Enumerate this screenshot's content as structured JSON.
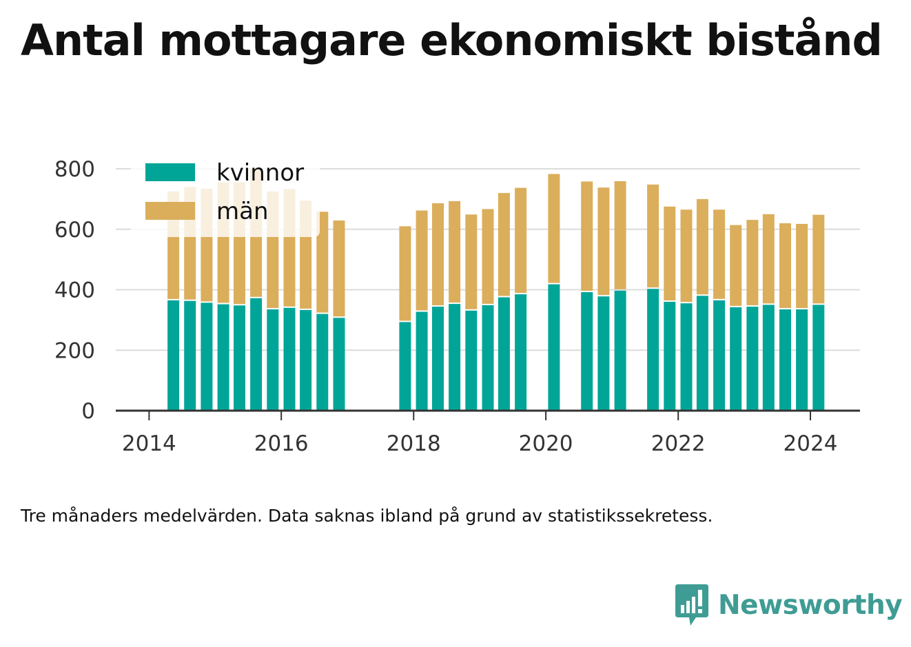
{
  "title": "Antal mottagare ekonomiskt bistånd",
  "caption": "Tre månaders medelvärden. Data saknas ibland på grund av statistikssekretess.",
  "brand": "Newsworthy",
  "colors": {
    "kvinnor": "#00a598",
    "man": "#dbae5c",
    "brand": "#3f9c94"
  },
  "chart_data": {
    "type": "bar",
    "stacked": true,
    "title": "Antal mottagare ekonomiskt bistånd",
    "xlabel": "",
    "ylabel": "",
    "ylim": [
      0,
      800
    ],
    "yticks": [
      0,
      200,
      400,
      600,
      800
    ],
    "xlim": [
      "2013-07-01",
      "2024-10-01"
    ],
    "xticks": [
      "2014",
      "2016",
      "2018",
      "2020",
      "2022",
      "2024"
    ],
    "grid": true,
    "legend": "top-left",
    "x": [
      "2014-05",
      "2014-08",
      "2014-11",
      "2015-02",
      "2015-05",
      "2015-08",
      "2015-11",
      "2016-02",
      "2016-05",
      "2016-08",
      "2016-11",
      "2017-11",
      "2018-02",
      "2018-05",
      "2018-08",
      "2018-11",
      "2019-02",
      "2019-05",
      "2019-08",
      "2020-02",
      "2020-08",
      "2020-11",
      "2021-02",
      "2021-08",
      "2021-11",
      "2022-02",
      "2022-05",
      "2022-08",
      "2022-11",
      "2023-02",
      "2023-05",
      "2023-08",
      "2023-11",
      "2024-02"
    ],
    "series": [
      {
        "name": "kvinnor",
        "values": [
          365,
          363,
          357,
          352,
          348,
          372,
          335,
          340,
          333,
          320,
          307,
          293,
          327,
          344,
          353,
          331,
          349,
          375,
          385,
          418,
          392,
          378,
          397,
          403,
          360,
          355,
          380,
          365,
          342,
          344,
          350,
          335,
          335,
          350
        ]
      },
      {
        "name": "män",
        "values": [
          360,
          377,
          377,
          403,
          407,
          428,
          390,
          393,
          362,
          338,
          322,
          317,
          335,
          342,
          340,
          318,
          318,
          345,
          352,
          365,
          366,
          360,
          362,
          345,
          315,
          310,
          320,
          300,
          272,
          287,
          300,
          285,
          283,
          298
        ]
      }
    ]
  }
}
